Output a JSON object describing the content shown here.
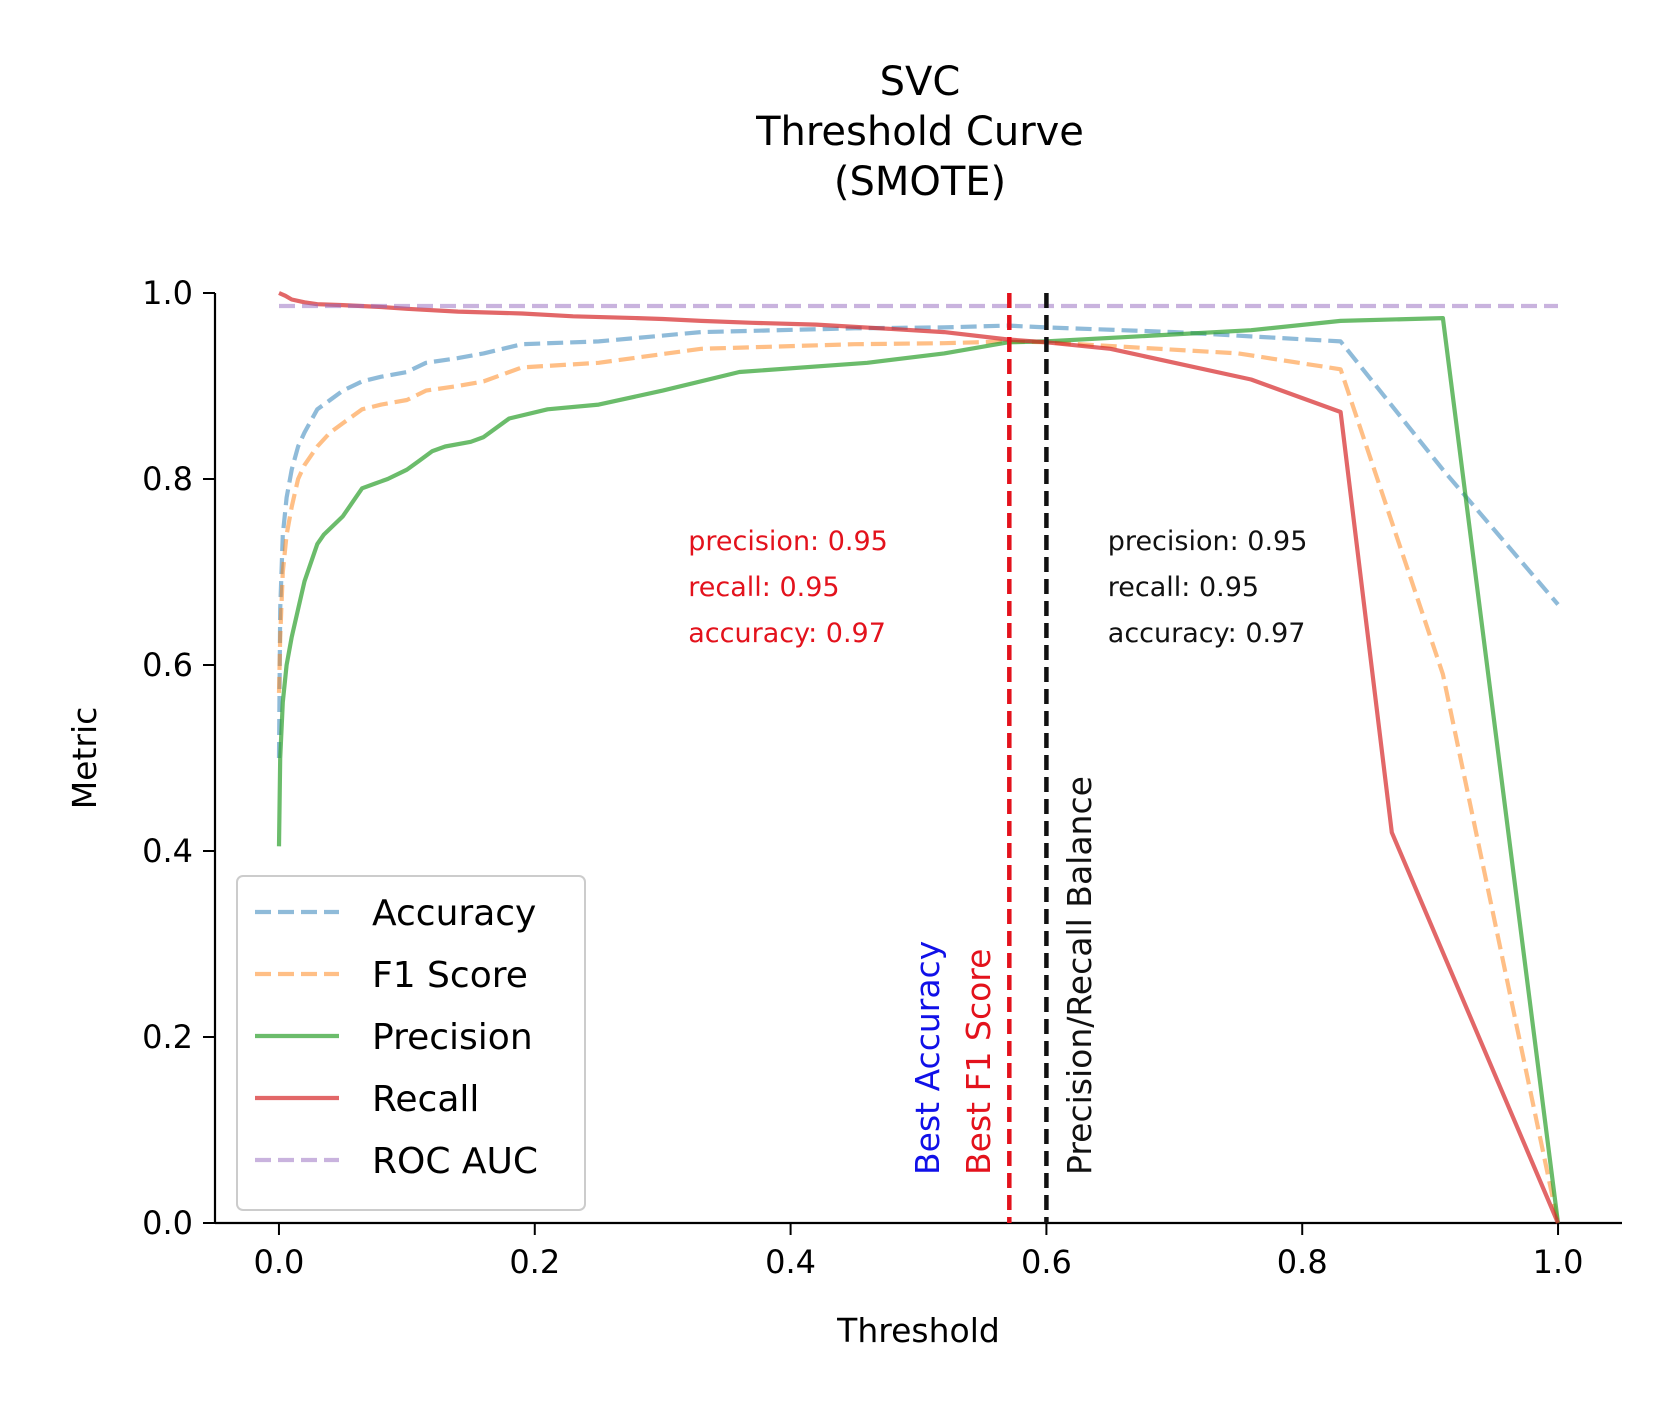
{
  "chart_data": {
    "type": "line",
    "title": [
      "SVC",
      "Threshold Curve",
      "(SMOTE)"
    ],
    "xlabel": "Threshold",
    "ylabel": "Metric",
    "xlim": [
      -0.05,
      1.05
    ],
    "ylim": [
      0.0,
      1.0
    ],
    "xticks": [
      "0.0",
      "0.2",
      "0.4",
      "0.6",
      "0.8",
      "1.0"
    ],
    "yticks": [
      "0.0",
      "0.2",
      "0.4",
      "0.6",
      "0.8",
      "1.0"
    ],
    "legend_position": "lower-left",
    "series": [
      {
        "name": "Accuracy",
        "color": "#1f77b4",
        "style": "dashed",
        "x": [
          0.0,
          0.001,
          0.003,
          0.006,
          0.01,
          0.015,
          0.02,
          0.03,
          0.04,
          0.05,
          0.065,
          0.08,
          0.1,
          0.115,
          0.14,
          0.16,
          0.19,
          0.25,
          0.33,
          0.45,
          0.52,
          0.57,
          0.6,
          0.7,
          0.83,
          0.91,
          1.0
        ],
        "y": [
          0.5,
          0.66,
          0.74,
          0.78,
          0.81,
          0.835,
          0.85,
          0.875,
          0.885,
          0.895,
          0.905,
          0.91,
          0.915,
          0.925,
          0.93,
          0.935,
          0.945,
          0.948,
          0.958,
          0.962,
          0.963,
          0.965,
          0.963,
          0.958,
          0.948,
          0.81,
          0.665
        ]
      },
      {
        "name": "F1 Score",
        "color": "#ff7f0e",
        "style": "dashed",
        "x": [
          0.0,
          0.001,
          0.003,
          0.006,
          0.01,
          0.015,
          0.02,
          0.03,
          0.04,
          0.05,
          0.065,
          0.08,
          0.1,
          0.115,
          0.14,
          0.16,
          0.19,
          0.25,
          0.33,
          0.45,
          0.52,
          0.57,
          0.6,
          0.75,
          0.83,
          0.91,
          1.0
        ],
        "y": [
          0.57,
          0.63,
          0.7,
          0.74,
          0.77,
          0.8,
          0.815,
          0.835,
          0.85,
          0.86,
          0.875,
          0.88,
          0.885,
          0.895,
          0.9,
          0.905,
          0.92,
          0.925,
          0.94,
          0.945,
          0.946,
          0.948,
          0.947,
          0.935,
          0.918,
          0.59,
          0.0
        ]
      },
      {
        "name": "Precision",
        "color": "#2ca02c",
        "style": "solid",
        "x": [
          0.0,
          0.001,
          0.003,
          0.006,
          0.01,
          0.015,
          0.02,
          0.03,
          0.035,
          0.05,
          0.06,
          0.065,
          0.075,
          0.085,
          0.1,
          0.11,
          0.12,
          0.13,
          0.15,
          0.16,
          0.18,
          0.21,
          0.25,
          0.3,
          0.36,
          0.46,
          0.52,
          0.57,
          0.6,
          0.76,
          0.83,
          0.91,
          1.0
        ],
        "y": [
          0.405,
          0.5,
          0.56,
          0.6,
          0.63,
          0.66,
          0.69,
          0.73,
          0.74,
          0.76,
          0.78,
          0.79,
          0.795,
          0.8,
          0.81,
          0.82,
          0.83,
          0.835,
          0.84,
          0.845,
          0.865,
          0.875,
          0.88,
          0.895,
          0.915,
          0.925,
          0.935,
          0.947,
          0.948,
          0.96,
          0.97,
          0.973,
          0.0
        ]
      },
      {
        "name": "Recall",
        "color": "#d62728",
        "style": "solid",
        "x": [
          0.0,
          0.005,
          0.01,
          0.02,
          0.03,
          0.05,
          0.08,
          0.1,
          0.14,
          0.19,
          0.23,
          0.28,
          0.3,
          0.33,
          0.37,
          0.42,
          0.47,
          0.52,
          0.57,
          0.6,
          0.65,
          0.76,
          0.83,
          0.87,
          1.0
        ],
        "y": [
          1.0,
          0.997,
          0.993,
          0.99,
          0.988,
          0.987,
          0.985,
          0.983,
          0.98,
          0.978,
          0.975,
          0.973,
          0.972,
          0.97,
          0.968,
          0.966,
          0.962,
          0.958,
          0.95,
          0.947,
          0.94,
          0.907,
          0.872,
          0.42,
          0.0
        ]
      },
      {
        "name": "ROC AUC",
        "color": "#9467bd",
        "style": "dashed",
        "x": [
          0.0,
          1.0
        ],
        "y": [
          0.986,
          0.986
        ]
      }
    ],
    "vlines": [
      {
        "x": 0.571,
        "color": "#e3121c",
        "style": "dashed"
      },
      {
        "x": 0.6,
        "color": "#111111",
        "style": "dashed"
      }
    ],
    "vertical_labels": [
      {
        "text": "Best Accuracy",
        "color": "#1010e8",
        "x": 0.516
      },
      {
        "text": "Best F1 Score",
        "color": "#e3121c",
        "x": 0.556
      },
      {
        "text": "Precision/Recall Balance",
        "color": "#111111",
        "x": 0.635
      }
    ],
    "annotations": [
      {
        "color": "#e3121c",
        "x": 0.32,
        "lines": [
          "precision: 0.95",
          "recall: 0.95",
          "accuracy: 0.97"
        ]
      },
      {
        "color": "#111111",
        "x": 0.648,
        "lines": [
          "precision: 0.95",
          "recall: 0.95",
          "accuracy: 0.97"
        ]
      }
    ]
  }
}
